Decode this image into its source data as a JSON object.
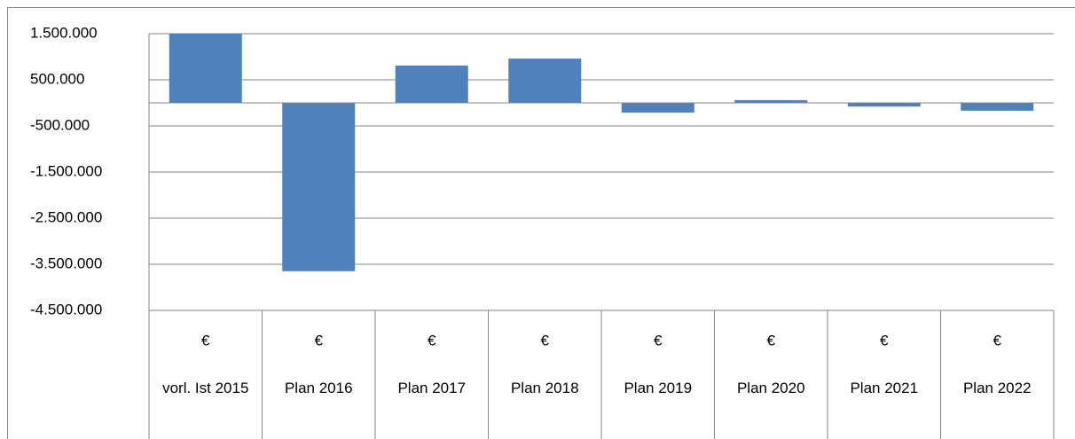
{
  "chart_data": {
    "type": "bar",
    "categories": [
      "vorl. Ist 2015",
      "Plan 2016",
      "Plan 2017",
      "Plan 2018",
      "Plan 2019",
      "Plan 2020",
      "Plan 2021",
      "Plan 2022"
    ],
    "x_unit": "€",
    "values": [
      1500000,
      -3650000,
      810000,
      960000,
      -210000,
      60000,
      -80000,
      -170000
    ],
    "color": "#4f81bd",
    "negative_label_color": "#e00000",
    "ylim": [
      -4500000,
      1500000
    ],
    "yticks": [
      {
        "value": 1500000,
        "label": "1.500.000"
      },
      {
        "value": 500000,
        "label": "500.000"
      },
      {
        "value": -500000,
        "label": "-500.000"
      },
      {
        "value": -1500000,
        "label": "-1.500.000"
      },
      {
        "value": -2500000,
        "label": "-2.500.000"
      },
      {
        "value": -3500000,
        "label": "-3.500.000"
      },
      {
        "value": -4500000,
        "label": "-4.500.000"
      }
    ],
    "grid": true
  }
}
